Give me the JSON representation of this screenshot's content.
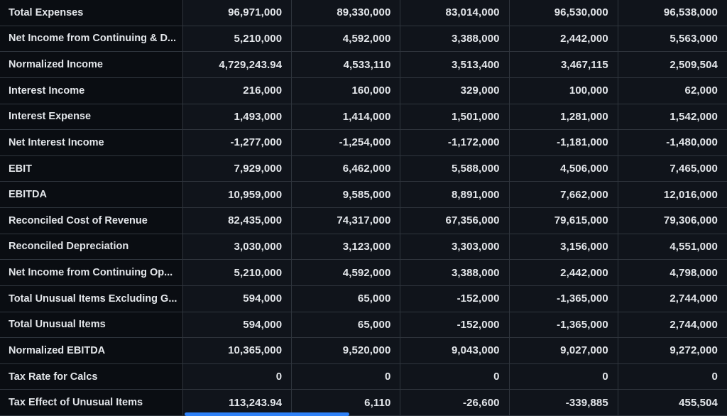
{
  "theme": {
    "bg": "#0d1016",
    "label_bg": "#0a0d12",
    "value_bg": "#10141b",
    "border": "#2f353d",
    "text": "#e3e6ea",
    "scrollbar": "#2f81f7"
  },
  "table": {
    "rows": [
      {
        "label": "Total Expenses",
        "values": [
          "96,971,000",
          "89,330,000",
          "83,014,000",
          "96,530,000",
          "96,538,000"
        ]
      },
      {
        "label": "Net Income from Continuing & D...",
        "values": [
          "5,210,000",
          "4,592,000",
          "3,388,000",
          "2,442,000",
          "5,563,000"
        ]
      },
      {
        "label": "Normalized Income",
        "values": [
          "4,729,243.94",
          "4,533,110",
          "3,513,400",
          "3,467,115",
          "2,509,504"
        ]
      },
      {
        "label": "Interest Income",
        "values": [
          "216,000",
          "160,000",
          "329,000",
          "100,000",
          "62,000"
        ]
      },
      {
        "label": "Interest Expense",
        "values": [
          "1,493,000",
          "1,414,000",
          "1,501,000",
          "1,281,000",
          "1,542,000"
        ]
      },
      {
        "label": "Net Interest Income",
        "values": [
          "-1,277,000",
          "-1,254,000",
          "-1,172,000",
          "-1,181,000",
          "-1,480,000"
        ]
      },
      {
        "label": "EBIT",
        "values": [
          "7,929,000",
          "6,462,000",
          "5,588,000",
          "4,506,000",
          "7,465,000"
        ]
      },
      {
        "label": "EBITDA",
        "values": [
          "10,959,000",
          "9,585,000",
          "8,891,000",
          "7,662,000",
          "12,016,000"
        ]
      },
      {
        "label": "Reconciled Cost of Revenue",
        "values": [
          "82,435,000",
          "74,317,000",
          "67,356,000",
          "79,615,000",
          "79,306,000"
        ]
      },
      {
        "label": "Reconciled Depreciation",
        "values": [
          "3,030,000",
          "3,123,000",
          "3,303,000",
          "3,156,000",
          "4,551,000"
        ]
      },
      {
        "label": "Net Income from Continuing Op...",
        "values": [
          "5,210,000",
          "4,592,000",
          "3,388,000",
          "2,442,000",
          "4,798,000"
        ]
      },
      {
        "label": "Total Unusual Items Excluding G...",
        "values": [
          "594,000",
          "65,000",
          "-152,000",
          "-1,365,000",
          "2,744,000"
        ]
      },
      {
        "label": "Total Unusual Items",
        "values": [
          "594,000",
          "65,000",
          "-152,000",
          "-1,365,000",
          "2,744,000"
        ]
      },
      {
        "label": "Normalized EBITDA",
        "values": [
          "10,365,000",
          "9,520,000",
          "9,043,000",
          "9,027,000",
          "9,272,000"
        ]
      },
      {
        "label": "Tax Rate for Calcs",
        "values": [
          "0",
          "0",
          "0",
          "0",
          "0"
        ]
      },
      {
        "label": "Tax Effect of Unusual Items",
        "values": [
          "113,243.94",
          "6,110",
          "-26,600",
          "-339,885",
          "455,504"
        ]
      }
    ]
  }
}
